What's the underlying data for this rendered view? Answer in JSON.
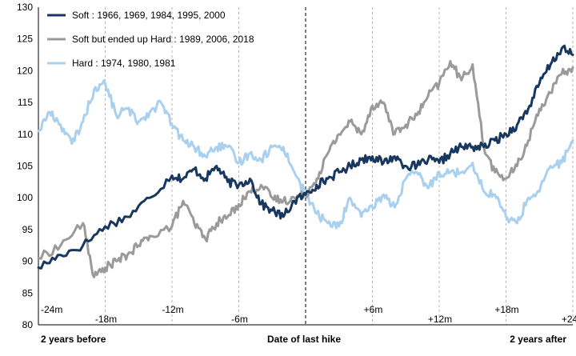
{
  "chart_data": {
    "type": "line",
    "ylim": [
      80,
      130
    ],
    "yticks": [
      "80",
      "85",
      "90",
      "95",
      "100",
      "105",
      "110",
      "115",
      "120",
      "125",
      "130"
    ],
    "xlim": [
      -24,
      24
    ],
    "x_unit": "months relative to date of last hike",
    "grid_months": [
      -24,
      -18,
      -12,
      -6,
      0,
      6,
      12,
      18,
      24
    ],
    "grid_labels": [
      "-24m",
      "-18m",
      "-12m",
      "-6m",
      "+6m",
      "+12m",
      "+18m",
      "+24m"
    ],
    "grid_label_months": [
      -24,
      -18,
      -12,
      -6,
      6,
      12,
      18,
      24
    ],
    "x_edge_labels": {
      "left": "2 years before",
      "center": "Date of last hike",
      "right": "2 years after"
    },
    "grid": "vertical dashed lines every 6 months; dashed black line at date of last hike",
    "legend_position": "top-left",
    "series": [
      {
        "name": "Soft : 1966, 1969, 1984, 1995, 2000",
        "color": "#17375e",
        "x": [
          -24,
          -22,
          -20,
          -18,
          -16,
          -14,
          -12,
          -11,
          -10,
          -9,
          -8,
          -7,
          -6,
          -5,
          -4,
          -3,
          -2,
          -1,
          0,
          1,
          2,
          3,
          4,
          5,
          6,
          7,
          8,
          9,
          10,
          11,
          12,
          13,
          14,
          15,
          16,
          17,
          18,
          19,
          20,
          21,
          22,
          23,
          24
        ],
        "values": [
          89,
          91,
          92.5,
          95.5,
          97,
          100,
          103.5,
          103,
          104.5,
          103,
          105,
          102.5,
          102,
          103,
          99,
          98,
          97,
          99.5,
          100.5,
          102,
          103,
          104,
          105,
          106,
          106.5,
          105.5,
          106.5,
          105,
          105,
          106,
          105.5,
          107,
          108,
          108,
          108,
          109,
          110,
          111.5,
          114,
          118,
          121,
          123.5,
          122.5
        ]
      },
      {
        "name": "Soft but ended up Hard : 1989, 2006, 2018",
        "color": "#9a9a9a",
        "x": [
          -24,
          -22,
          -20,
          -19,
          -18,
          -17,
          -16,
          -15,
          -14,
          -12,
          -11,
          -10,
          -9,
          -8,
          -7,
          -6,
          -5,
          -4,
          -3,
          -2,
          -1,
          0,
          1,
          2,
          3,
          4,
          5,
          6,
          7,
          8,
          9,
          10,
          11,
          12,
          13,
          14,
          15,
          16,
          17,
          18,
          19,
          20,
          21,
          22,
          23,
          24
        ],
        "values": [
          90.5,
          92.5,
          96,
          87.5,
          89,
          90,
          91,
          92.5,
          94,
          95.5,
          99.5,
          96,
          93.5,
          96,
          97,
          99,
          101,
          102,
          100,
          99.5,
          100,
          100.5,
          103,
          107,
          110,
          112,
          110,
          114.5,
          115,
          110,
          111.5,
          113,
          116,
          118,
          121.5,
          118.5,
          121,
          108,
          104,
          103,
          105,
          109,
          114,
          116.5,
          119.5,
          120.5
        ]
      },
      {
        "name": "Hard : 1974, 1980, 1981",
        "color": "#a9d0ef",
        "x": [
          -24,
          -23,
          -22,
          -21,
          -20,
          -19,
          -18,
          -17,
          -16,
          -15,
          -14,
          -13,
          -12,
          -11,
          -10,
          -9,
          -8,
          -7,
          -6,
          -5,
          -4,
          -3,
          -2,
          -1,
          0,
          1,
          2,
          3,
          4,
          5,
          6,
          7,
          8,
          9,
          10,
          11,
          12,
          13,
          14,
          15,
          16,
          17,
          18,
          19,
          20,
          21,
          22,
          23,
          24
        ],
        "values": [
          110.5,
          113.5,
          111.5,
          108.5,
          112,
          117,
          118,
          113,
          114,
          112,
          113.5,
          115,
          111.5,
          109,
          108,
          106.5,
          108,
          108,
          105.5,
          107,
          106,
          108,
          108,
          104,
          100.5,
          97.5,
          96,
          95.5,
          100,
          97,
          98.5,
          100.5,
          98.5,
          103,
          104,
          101.5,
          104,
          104,
          104,
          105.5,
          101,
          100.5,
          97,
          96,
          100,
          101,
          105,
          105.5,
          109
        ]
      }
    ]
  }
}
